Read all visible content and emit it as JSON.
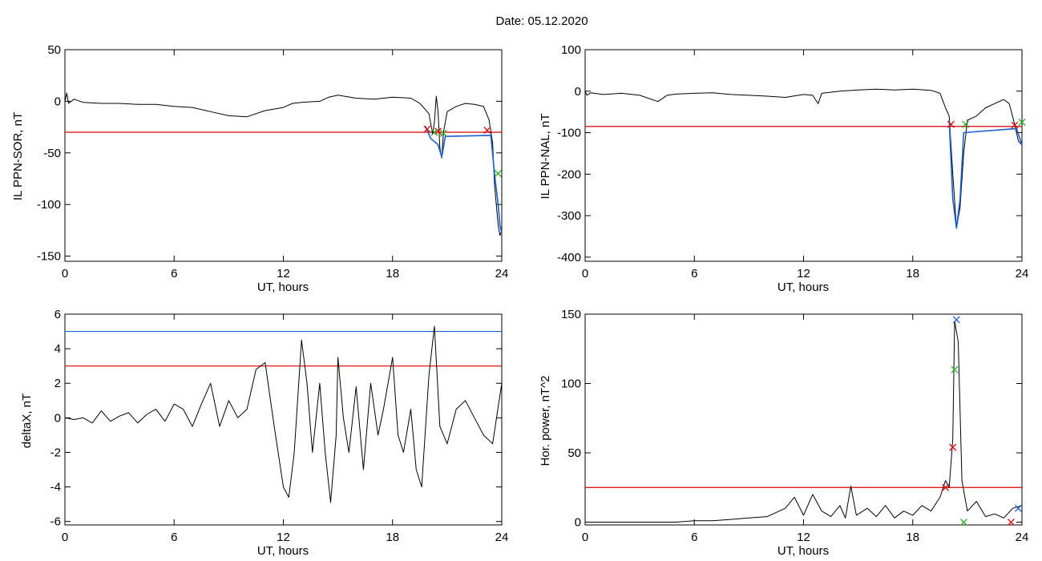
{
  "figure": {
    "title": "Date:  05.12.2020"
  },
  "chart_data": [
    {
      "id": "sor",
      "type": "line",
      "ylabel": "IL PPN-SOR, nT",
      "xlabel": "UT, hours",
      "xlim": [
        0,
        24
      ],
      "ylim": [
        -155,
        50
      ],
      "xticks": [
        0,
        6,
        12,
        18,
        24
      ],
      "yticks": [
        -150,
        -100,
        -50,
        0,
        50
      ],
      "series": [
        {
          "values": [
            [
              0,
              0
            ],
            [
              0.1,
              8
            ],
            [
              0.2,
              -2
            ],
            [
              0.5,
              2
            ],
            [
              1,
              -1
            ],
            [
              2,
              -2
            ],
            [
              3,
              -2
            ],
            [
              4,
              -3
            ],
            [
              5,
              -3
            ],
            [
              6,
              -5
            ],
            [
              7,
              -6
            ],
            [
              8,
              -10
            ],
            [
              9,
              -14
            ],
            [
              10,
              -15
            ],
            [
              11,
              -9
            ],
            [
              12,
              -6
            ],
            [
              12.5,
              -2
            ],
            [
              13,
              -1
            ],
            [
              14,
              0
            ],
            [
              14.5,
              4
            ],
            [
              15,
              6
            ],
            [
              16,
              3
            ],
            [
              17,
              2
            ],
            [
              18,
              4
            ],
            [
              19,
              3
            ],
            [
              19.5,
              -2
            ],
            [
              20,
              -12
            ],
            [
              20.2,
              -32
            ],
            [
              20.3,
              -20
            ],
            [
              20.4,
              5
            ],
            [
              20.5,
              -10
            ],
            [
              20.6,
              -45
            ],
            [
              20.7,
              -55
            ],
            [
              20.8,
              -30
            ],
            [
              21,
              -10
            ],
            [
              21.5,
              -5
            ],
            [
              22,
              -2
            ],
            [
              22.5,
              -3
            ],
            [
              23,
              -5
            ],
            [
              23.3,
              -18
            ],
            [
              23.5,
              -40
            ],
            [
              23.6,
              -80
            ],
            [
              23.7,
              -100
            ],
            [
              23.8,
              -120
            ],
            [
              23.9,
              -130
            ],
            [
              24,
              -125
            ]
          ]
        },
        {
          "values": [
            [
              19.8,
              -24
            ],
            [
              20.1,
              -36
            ],
            [
              20.5,
              -42
            ],
            [
              20.7,
              -54
            ],
            [
              20.9,
              -34
            ],
            [
              23.4,
              -33
            ],
            [
              23.6,
              -70
            ],
            [
              23.8,
              -100
            ],
            [
              23.9,
              -120
            ],
            [
              24,
              -128
            ]
          ],
          "color": "#1a5fd0"
        }
      ],
      "hlines": [
        {
          "y": -30,
          "color": "#dd0000"
        }
      ],
      "markers": [
        {
          "x": 19.9,
          "y": -27,
          "color": "#dd0000"
        },
        {
          "x": 20.5,
          "y": -29,
          "color": "#dd0000"
        },
        {
          "x": 20.3,
          "y": -30,
          "color": "#22aa22"
        },
        {
          "x": 20.8,
          "y": -31,
          "color": "#22aa22"
        },
        {
          "x": 23.2,
          "y": -28,
          "color": "#dd0000"
        },
        {
          "x": 23.8,
          "y": -70,
          "color": "#22aa22"
        }
      ]
    },
    {
      "id": "nal",
      "type": "line",
      "ylabel": "IL PPN-NAL, nT",
      "xlabel": "UT, hours",
      "xlim": [
        0,
        24
      ],
      "ylim": [
        -410,
        100
      ],
      "xticks": [
        0,
        6,
        12,
        18,
        24
      ],
      "yticks": [
        -400,
        -300,
        -200,
        -100,
        0,
        100
      ],
      "series": [
        {
          "values": [
            [
              0,
              0
            ],
            [
              0.1,
              -10
            ],
            [
              0.3,
              -4
            ],
            [
              1,
              -8
            ],
            [
              2,
              -5
            ],
            [
              3,
              -10
            ],
            [
              4,
              -25
            ],
            [
              4.5,
              -10
            ],
            [
              5,
              -7
            ],
            [
              6,
              -5
            ],
            [
              7,
              -4
            ],
            [
              8,
              -8
            ],
            [
              9,
              -10
            ],
            [
              10,
              -12
            ],
            [
              11,
              -15
            ],
            [
              12,
              -8
            ],
            [
              12.5,
              -10
            ],
            [
              12.8,
              -30
            ],
            [
              13,
              -5
            ],
            [
              14,
              0
            ],
            [
              15,
              3
            ],
            [
              16,
              5
            ],
            [
              17,
              3
            ],
            [
              18,
              5
            ],
            [
              19,
              2
            ],
            [
              19.5,
              -5
            ],
            [
              19.8,
              -40
            ],
            [
              20,
              -60
            ],
            [
              20.2,
              -200
            ],
            [
              20.4,
              -330
            ],
            [
              20.6,
              -280
            ],
            [
              20.8,
              -150
            ],
            [
              21,
              -70
            ],
            [
              21.5,
              -60
            ],
            [
              22,
              -40
            ],
            [
              22.5,
              -30
            ],
            [
              23,
              -20
            ],
            [
              23.3,
              -30
            ],
            [
              23.6,
              -80
            ],
            [
              23.8,
              -120
            ],
            [
              24,
              -130
            ]
          ]
        },
        {
          "values": [
            [
              20.0,
              -70
            ],
            [
              20.2,
              -260
            ],
            [
              20.4,
              -330
            ],
            [
              20.6,
              -260
            ],
            [
              20.8,
              -100
            ],
            [
              23.7,
              -90
            ],
            [
              24,
              -130
            ]
          ],
          "color": "#1a5fd0"
        }
      ],
      "hlines": [
        {
          "y": -85,
          "color": "#dd0000"
        }
      ],
      "markers": [
        {
          "x": 20.1,
          "y": -80,
          "color": "#dd0000"
        },
        {
          "x": 20.9,
          "y": -80,
          "color": "#22aa22"
        },
        {
          "x": 23.6,
          "y": -82,
          "color": "#dd0000"
        },
        {
          "x": 24,
          "y": -75,
          "color": "#22aa22"
        }
      ]
    },
    {
      "id": "deltax",
      "type": "line",
      "ylabel": "deltaX, nT",
      "xlabel": "UT, hours",
      "xlim": [
        0,
        24
      ],
      "ylim": [
        -6.2,
        6
      ],
      "xticks": [
        0,
        6,
        12,
        18,
        24
      ],
      "yticks": [
        -6,
        -4,
        -2,
        0,
        2,
        4,
        6
      ],
      "series": [
        {
          "values": [
            [
              0,
              0
            ],
            [
              0.5,
              -0.1
            ],
            [
              1,
              0
            ],
            [
              1.5,
              -0.3
            ],
            [
              2,
              0.4
            ],
            [
              2.5,
              -0.2
            ],
            [
              3,
              0.1
            ],
            [
              3.5,
              0.3
            ],
            [
              4,
              -0.3
            ],
            [
              4.5,
              0.2
            ],
            [
              5,
              0.5
            ],
            [
              5.5,
              -0.2
            ],
            [
              6,
              0.8
            ],
            [
              6.5,
              0.5
            ],
            [
              7,
              -0.5
            ],
            [
              7.5,
              0.8
            ],
            [
              8,
              2
            ],
            [
              8.5,
              -0.5
            ],
            [
              9,
              1
            ],
            [
              9.5,
              0
            ],
            [
              10,
              0.5
            ],
            [
              10.5,
              2.8
            ],
            [
              11,
              3.2
            ],
            [
              11.5,
              -0.5
            ],
            [
              12,
              -4
            ],
            [
              12.3,
              -4.6
            ],
            [
              12.6,
              -2
            ],
            [
              13,
              4.5
            ],
            [
              13.3,
              2
            ],
            [
              13.6,
              -2
            ],
            [
              14,
              2
            ],
            [
              14.3,
              -2
            ],
            [
              14.6,
              -4.9
            ],
            [
              14.9,
              -1
            ],
            [
              15,
              3.5
            ],
            [
              15.3,
              0
            ],
            [
              15.6,
              -2
            ],
            [
              16,
              1.8
            ],
            [
              16.4,
              -3
            ],
            [
              16.8,
              2
            ],
            [
              17.2,
              -1
            ],
            [
              17.5,
              0.5
            ],
            [
              18,
              3.5
            ],
            [
              18.3,
              -1
            ],
            [
              18.6,
              -2
            ],
            [
              19,
              0.5
            ],
            [
              19.3,
              -3
            ],
            [
              19.6,
              -4
            ],
            [
              20,
              2.5
            ],
            [
              20.3,
              5.3
            ],
            [
              20.6,
              -0.5
            ],
            [
              21,
              -1.5
            ],
            [
              21.5,
              0.5
            ],
            [
              22,
              1
            ],
            [
              22.5,
              0
            ],
            [
              23,
              -1
            ],
            [
              23.5,
              -1.5
            ],
            [
              24,
              2
            ]
          ]
        }
      ],
      "hlines": [
        {
          "y": 5,
          "color": "#1a5fd0"
        },
        {
          "y": 3,
          "color": "#dd0000"
        }
      ],
      "markers": []
    },
    {
      "id": "hpow",
      "type": "line",
      "ylabel": "Hor. power, nT^2",
      "xlabel": "UT, hours",
      "xlim": [
        0,
        24
      ],
      "ylim": [
        -2,
        150
      ],
      "xticks": [
        0,
        6,
        12,
        18,
        24
      ],
      "yticks": [
        0,
        50,
        100,
        150
      ],
      "series": [
        {
          "values": [
            [
              0,
              0
            ],
            [
              1,
              0
            ],
            [
              2,
              0
            ],
            [
              3,
              0
            ],
            [
              4,
              0
            ],
            [
              5,
              0
            ],
            [
              6,
              1
            ],
            [
              7,
              1
            ],
            [
              8,
              2
            ],
            [
              9,
              3
            ],
            [
              10,
              4
            ],
            [
              11,
              10
            ],
            [
              11.5,
              18
            ],
            [
              12,
              5
            ],
            [
              12.5,
              20
            ],
            [
              13,
              8
            ],
            [
              13.5,
              4
            ],
            [
              14,
              12
            ],
            [
              14.3,
              3
            ],
            [
              14.6,
              26
            ],
            [
              14.9,
              5
            ],
            [
              15.5,
              10
            ],
            [
              16,
              4
            ],
            [
              16.5,
              12
            ],
            [
              17,
              3
            ],
            [
              17.5,
              8
            ],
            [
              18,
              5
            ],
            [
              18.5,
              12
            ],
            [
              19,
              8
            ],
            [
              19.5,
              18
            ],
            [
              19.8,
              30
            ],
            [
              20,
              25
            ],
            [
              20.2,
              60
            ],
            [
              20.3,
              145
            ],
            [
              20.5,
              130
            ],
            [
              20.7,
              30
            ],
            [
              21,
              8
            ],
            [
              21.5,
              15
            ],
            [
              22,
              4
            ],
            [
              22.5,
              6
            ],
            [
              23,
              3
            ],
            [
              23.5,
              10
            ],
            [
              24,
              12
            ]
          ]
        }
      ],
      "hlines": [
        {
          "y": 25,
          "color": "#dd0000"
        }
      ],
      "markers": [
        {
          "x": 20.4,
          "y": 146,
          "color": "#1a5fd0"
        },
        {
          "x": 20.3,
          "y": 110,
          "color": "#22aa22"
        },
        {
          "x": 20.2,
          "y": 54,
          "color": "#dd0000"
        },
        {
          "x": 19.8,
          "y": 25,
          "color": "#dd0000"
        },
        {
          "x": 20.8,
          "y": 0,
          "color": "#22aa22"
        },
        {
          "x": 23.4,
          "y": 0,
          "color": "#dd0000"
        },
        {
          "x": 23.8,
          "y": 10,
          "color": "#1a5fd0"
        }
      ]
    }
  ]
}
